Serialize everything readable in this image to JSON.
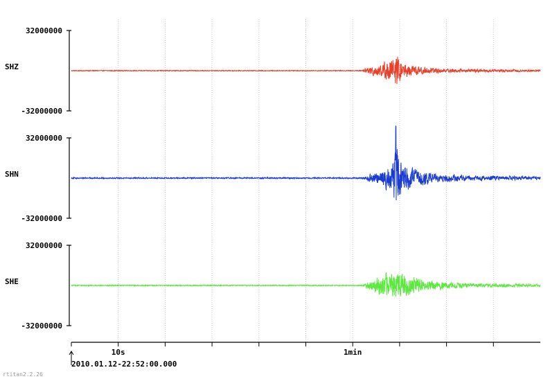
{
  "chart_data": {
    "type": "line",
    "title": "",
    "xlabel": "",
    "ylabel": "",
    "start_time": "2010.01.12-22:52:00.000",
    "x_unit": "s",
    "xlim": [
      0,
      100
    ],
    "x_ticks": [
      {
        "value": 10,
        "label": "10s"
      },
      {
        "value": 60,
        "label": "1min"
      }
    ],
    "grid": true,
    "legend": "none",
    "series": [
      {
        "name": "SHZ",
        "color": "#e8402a",
        "ylim": [
          -32000000,
          32000000
        ],
        "ytick_top": "32000000",
        "ytick_bottom": "-32000000",
        "envelope": [
          [
            0,
            400000
          ],
          [
            62,
            400000
          ],
          [
            63.5,
            4500000
          ],
          [
            66,
            6500000
          ],
          [
            69.3,
            15000000
          ],
          [
            71,
            7000000
          ],
          [
            75,
            3500000
          ],
          [
            80,
            2000000
          ],
          [
            90,
            1300000
          ],
          [
            100,
            1000000
          ]
        ]
      },
      {
        "name": "SHN",
        "color": "#1a3cd0",
        "ylim": [
          -32000000,
          32000000
        ],
        "ytick_top": "32000000",
        "ytick_bottom": "-32000000",
        "envelope": [
          [
            0,
            600000
          ],
          [
            62,
            600000
          ],
          [
            64,
            4500000
          ],
          [
            66.5,
            8000000
          ],
          [
            68.5,
            16000000
          ],
          [
            69.2,
            42000000
          ],
          [
            70.5,
            14000000
          ],
          [
            73,
            9000000
          ],
          [
            78,
            4500000
          ],
          [
            85,
            2500000
          ],
          [
            100,
            1500000
          ]
        ]
      },
      {
        "name": "SHE",
        "color": "#5de840",
        "ylim": [
          -32000000,
          32000000
        ],
        "ytick_top": "32000000",
        "ytick_bottom": "-32000000",
        "envelope": [
          [
            0,
            500000
          ],
          [
            62,
            500000
          ],
          [
            64,
            6000000
          ],
          [
            67,
            12000000
          ],
          [
            70,
            14000000
          ],
          [
            72,
            10000000
          ],
          [
            76,
            5000000
          ],
          [
            82,
            2800000
          ],
          [
            90,
            1800000
          ],
          [
            100,
            1300000
          ]
        ]
      }
    ]
  },
  "footer": {
    "version": "rtitan2.2.26"
  }
}
